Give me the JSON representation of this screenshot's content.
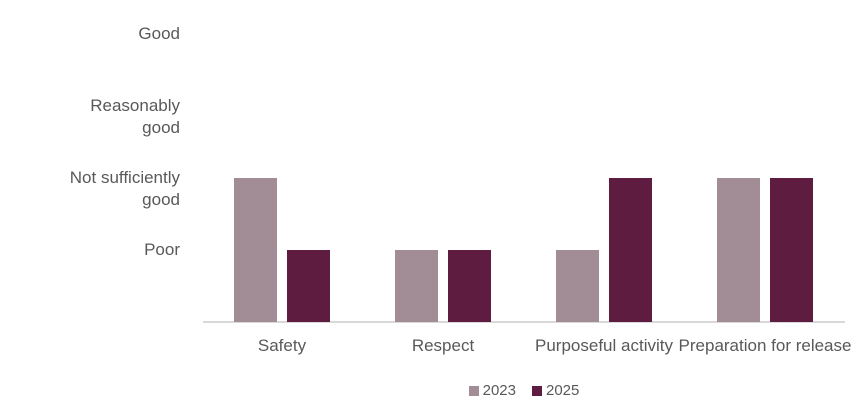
{
  "chart_data": {
    "type": "bar",
    "categories": [
      "Safety",
      "Respect",
      "Purposeful activity",
      "Preparation for release"
    ],
    "series": [
      {
        "name": "2023",
        "color": "#a28c95",
        "values": [
          2,
          1,
          1,
          2
        ]
      },
      {
        "name": "2025",
        "color": "#5e1c40",
        "values": [
          1,
          1,
          2,
          2
        ]
      }
    ],
    "y_ticks": [
      {
        "value": 4,
        "label": "Good"
      },
      {
        "value": 3,
        "label": "Reasonably\ngood"
      },
      {
        "value": 2,
        "label": "Not sufficiently\ngood"
      },
      {
        "value": 1,
        "label": "Poor"
      }
    ],
    "ylim": [
      0,
      4
    ],
    "grid": false,
    "legend_position": "bottom",
    "legend_labels": [
      "2023",
      "2025"
    ]
  },
  "colors": {
    "series_2023": "#a28c95",
    "series_2025": "#5e1c40",
    "axis_line": "#d9d9d9",
    "text": "#595959",
    "background": "#ffffff"
  }
}
